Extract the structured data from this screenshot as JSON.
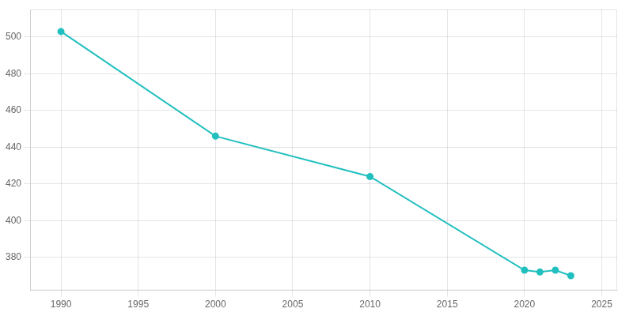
{
  "chart_data": {
    "type": "line",
    "x": [
      1990,
      2000,
      2010,
      2020,
      2021,
      2022,
      2023
    ],
    "values": [
      503,
      446,
      424,
      373,
      372,
      373,
      370
    ],
    "color": "#22BFBF",
    "marker": "circle",
    "xlim": [
      1988,
      2026
    ],
    "ylim": [
      362,
      515
    ],
    "xticks": [
      1990,
      1995,
      2000,
      2005,
      2010,
      2015,
      2020,
      2025
    ],
    "yticks": [
      380,
      400,
      420,
      440,
      460,
      480,
      500
    ],
    "grid": true
  }
}
